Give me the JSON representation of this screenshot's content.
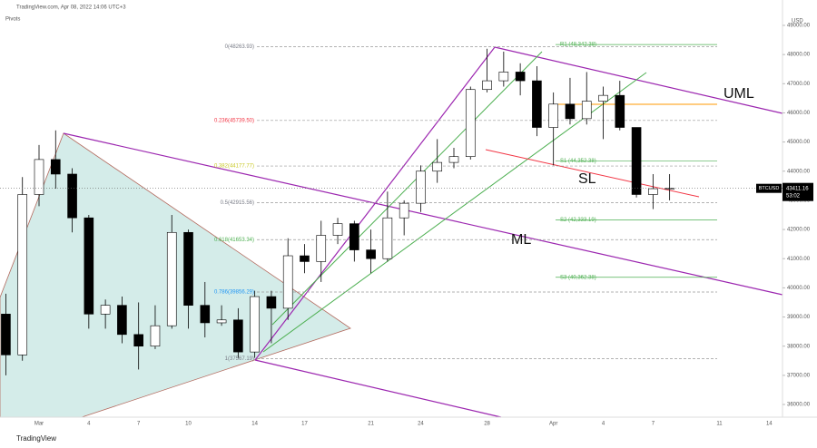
{
  "chart_data": {
    "type": "candlestick",
    "source": "TradingView.com, Apr 08, 2022 14:06 UTC+3",
    "indicator": "Pivots",
    "currency": "USD",
    "symbol": "BTCUSD",
    "last_price": 43411.16,
    "countdown": "53:02",
    "brand": "TradingView",
    "up_color": "#ffffff",
    "down_color": "#000000",
    "categories": [
      null,
      null,
      "Mar",
      null,
      null,
      "4",
      null,
      null,
      "7",
      null,
      null,
      "10",
      null,
      null,
      null,
      "14",
      null,
      null,
      "17",
      null,
      null,
      null,
      "21",
      null,
      null,
      "24",
      null,
      null,
      null,
      "28",
      null,
      null,
      null,
      "Apr",
      null,
      null,
      "4",
      null,
      null,
      "7",
      null,
      null,
      null,
      "11",
      null,
      null,
      "14"
    ],
    "open": [
      39100,
      37700,
      43200,
      44400,
      43900,
      42400,
      39100,
      39400,
      38400,
      38000,
      38700,
      41900,
      39400,
      38800,
      38900,
      37800,
      39700,
      39300,
      41100,
      40900,
      41800,
      42200,
      41300,
      41000,
      42400,
      42900,
      44000,
      44300,
      44500,
      46800,
      47100,
      47400,
      47100,
      45500,
      46300,
      45800,
      46400,
      46600,
      45500,
      43200,
      43400,
      null,
      null,
      null,
      null,
      null,
      null
    ],
    "high": [
      39800,
      43800,
      44900,
      45400,
      44100,
      42500,
      39600,
      39700,
      39500,
      39400,
      42500,
      42000,
      40200,
      39400,
      39300,
      39900,
      39900,
      41700,
      41500,
      42300,
      42400,
      42300,
      42000,
      43300,
      43000,
      44200,
      45100,
      44800,
      46900,
      48200,
      48100,
      47700,
      47600,
      46700,
      47200,
      47400,
      46900,
      47100,
      45500,
      43900,
      43900,
      null,
      null,
      null,
      null,
      null,
      null
    ],
    "low": [
      37000,
      37500,
      42800,
      43400,
      41900,
      38600,
      38600,
      38100,
      37200,
      37900,
      38600,
      38600,
      38300,
      38700,
      37600,
      37600,
      38100,
      38900,
      40500,
      40200,
      41500,
      40900,
      40500,
      40900,
      41800,
      42600,
      43600,
      44100,
      44400,
      46700,
      46900,
      46600,
      45200,
      44200,
      45600,
      45600,
      45100,
      45400,
      43100,
      42700,
      43000,
      null,
      null,
      null,
      null,
      null,
      null
    ],
    "close": [
      37700,
      43200,
      44400,
      43900,
      42400,
      39100,
      39400,
      38400,
      38000,
      38700,
      41900,
      39400,
      38800,
      38900,
      37800,
      39700,
      39300,
      41100,
      40900,
      41800,
      42200,
      41300,
      41000,
      42400,
      42900,
      44000,
      44300,
      44500,
      46800,
      47100,
      47400,
      47100,
      45500,
      46300,
      45800,
      46400,
      46600,
      45500,
      43200,
      43400,
      43411.16,
      null,
      null,
      null,
      null,
      null,
      null
    ],
    "ylim": [
      35565,
      49870
    ],
    "yticks": [
      {
        "value": 36000,
        "label": "36000.00"
      },
      {
        "value": 37000,
        "label": "37000.00"
      },
      {
        "value": 38000,
        "label": "38000.00"
      },
      {
        "value": 39000,
        "label": "39000.00"
      },
      {
        "value": 40000,
        "label": "40000.00"
      },
      {
        "value": 41000,
        "label": "41000.00"
      },
      {
        "value": 42000,
        "label": "42000.00"
      },
      {
        "value": 43000,
        "label": "43000.00"
      },
      {
        "value": 44000,
        "label": "44000.00"
      },
      {
        "value": 45000,
        "label": "45000.00"
      },
      {
        "value": 46000,
        "label": "46000.00"
      },
      {
        "value": 47000,
        "label": "47000.00"
      },
      {
        "value": 48000,
        "label": "48000.00"
      },
      {
        "value": 49000,
        "label": "49000.00"
      }
    ],
    "fib_levels": [
      {
        "value": 48263.93,
        "label": "0(48263.93)",
        "color": "#787b86"
      },
      {
        "value": 45739.5,
        "label": "0.236(45739.50)",
        "color": "#f23645"
      },
      {
        "value": 44177.77,
        "label": "0.382(44177.77)",
        "color": "#c9c928"
      },
      {
        "value": 42915.56,
        "label": "0.5(42915.56)",
        "color": "#787b86"
      },
      {
        "value": 41653.34,
        "label": "0.618(41653.34)",
        "color": "#4caf50"
      },
      {
        "value": 39856.29,
        "label": "0.786(39856.29)",
        "color": "#2196f3"
      },
      {
        "value": 37567.19,
        "label": "1(37567.19)",
        "color": "#787b86"
      }
    ],
    "pivots": [
      {
        "value": 48342.38,
        "label": "R1 (48,342.38)"
      },
      {
        "value": 44352.38,
        "label": "S1 (44,352.38)"
      },
      {
        "value": 42333.19,
        "label": "S2 (42,333.19)"
      },
      {
        "value": 40362.38,
        "label": "S3 (40,362.38)"
      }
    ],
    "annotations": [
      "UML",
      "SL",
      "ML"
    ]
  }
}
